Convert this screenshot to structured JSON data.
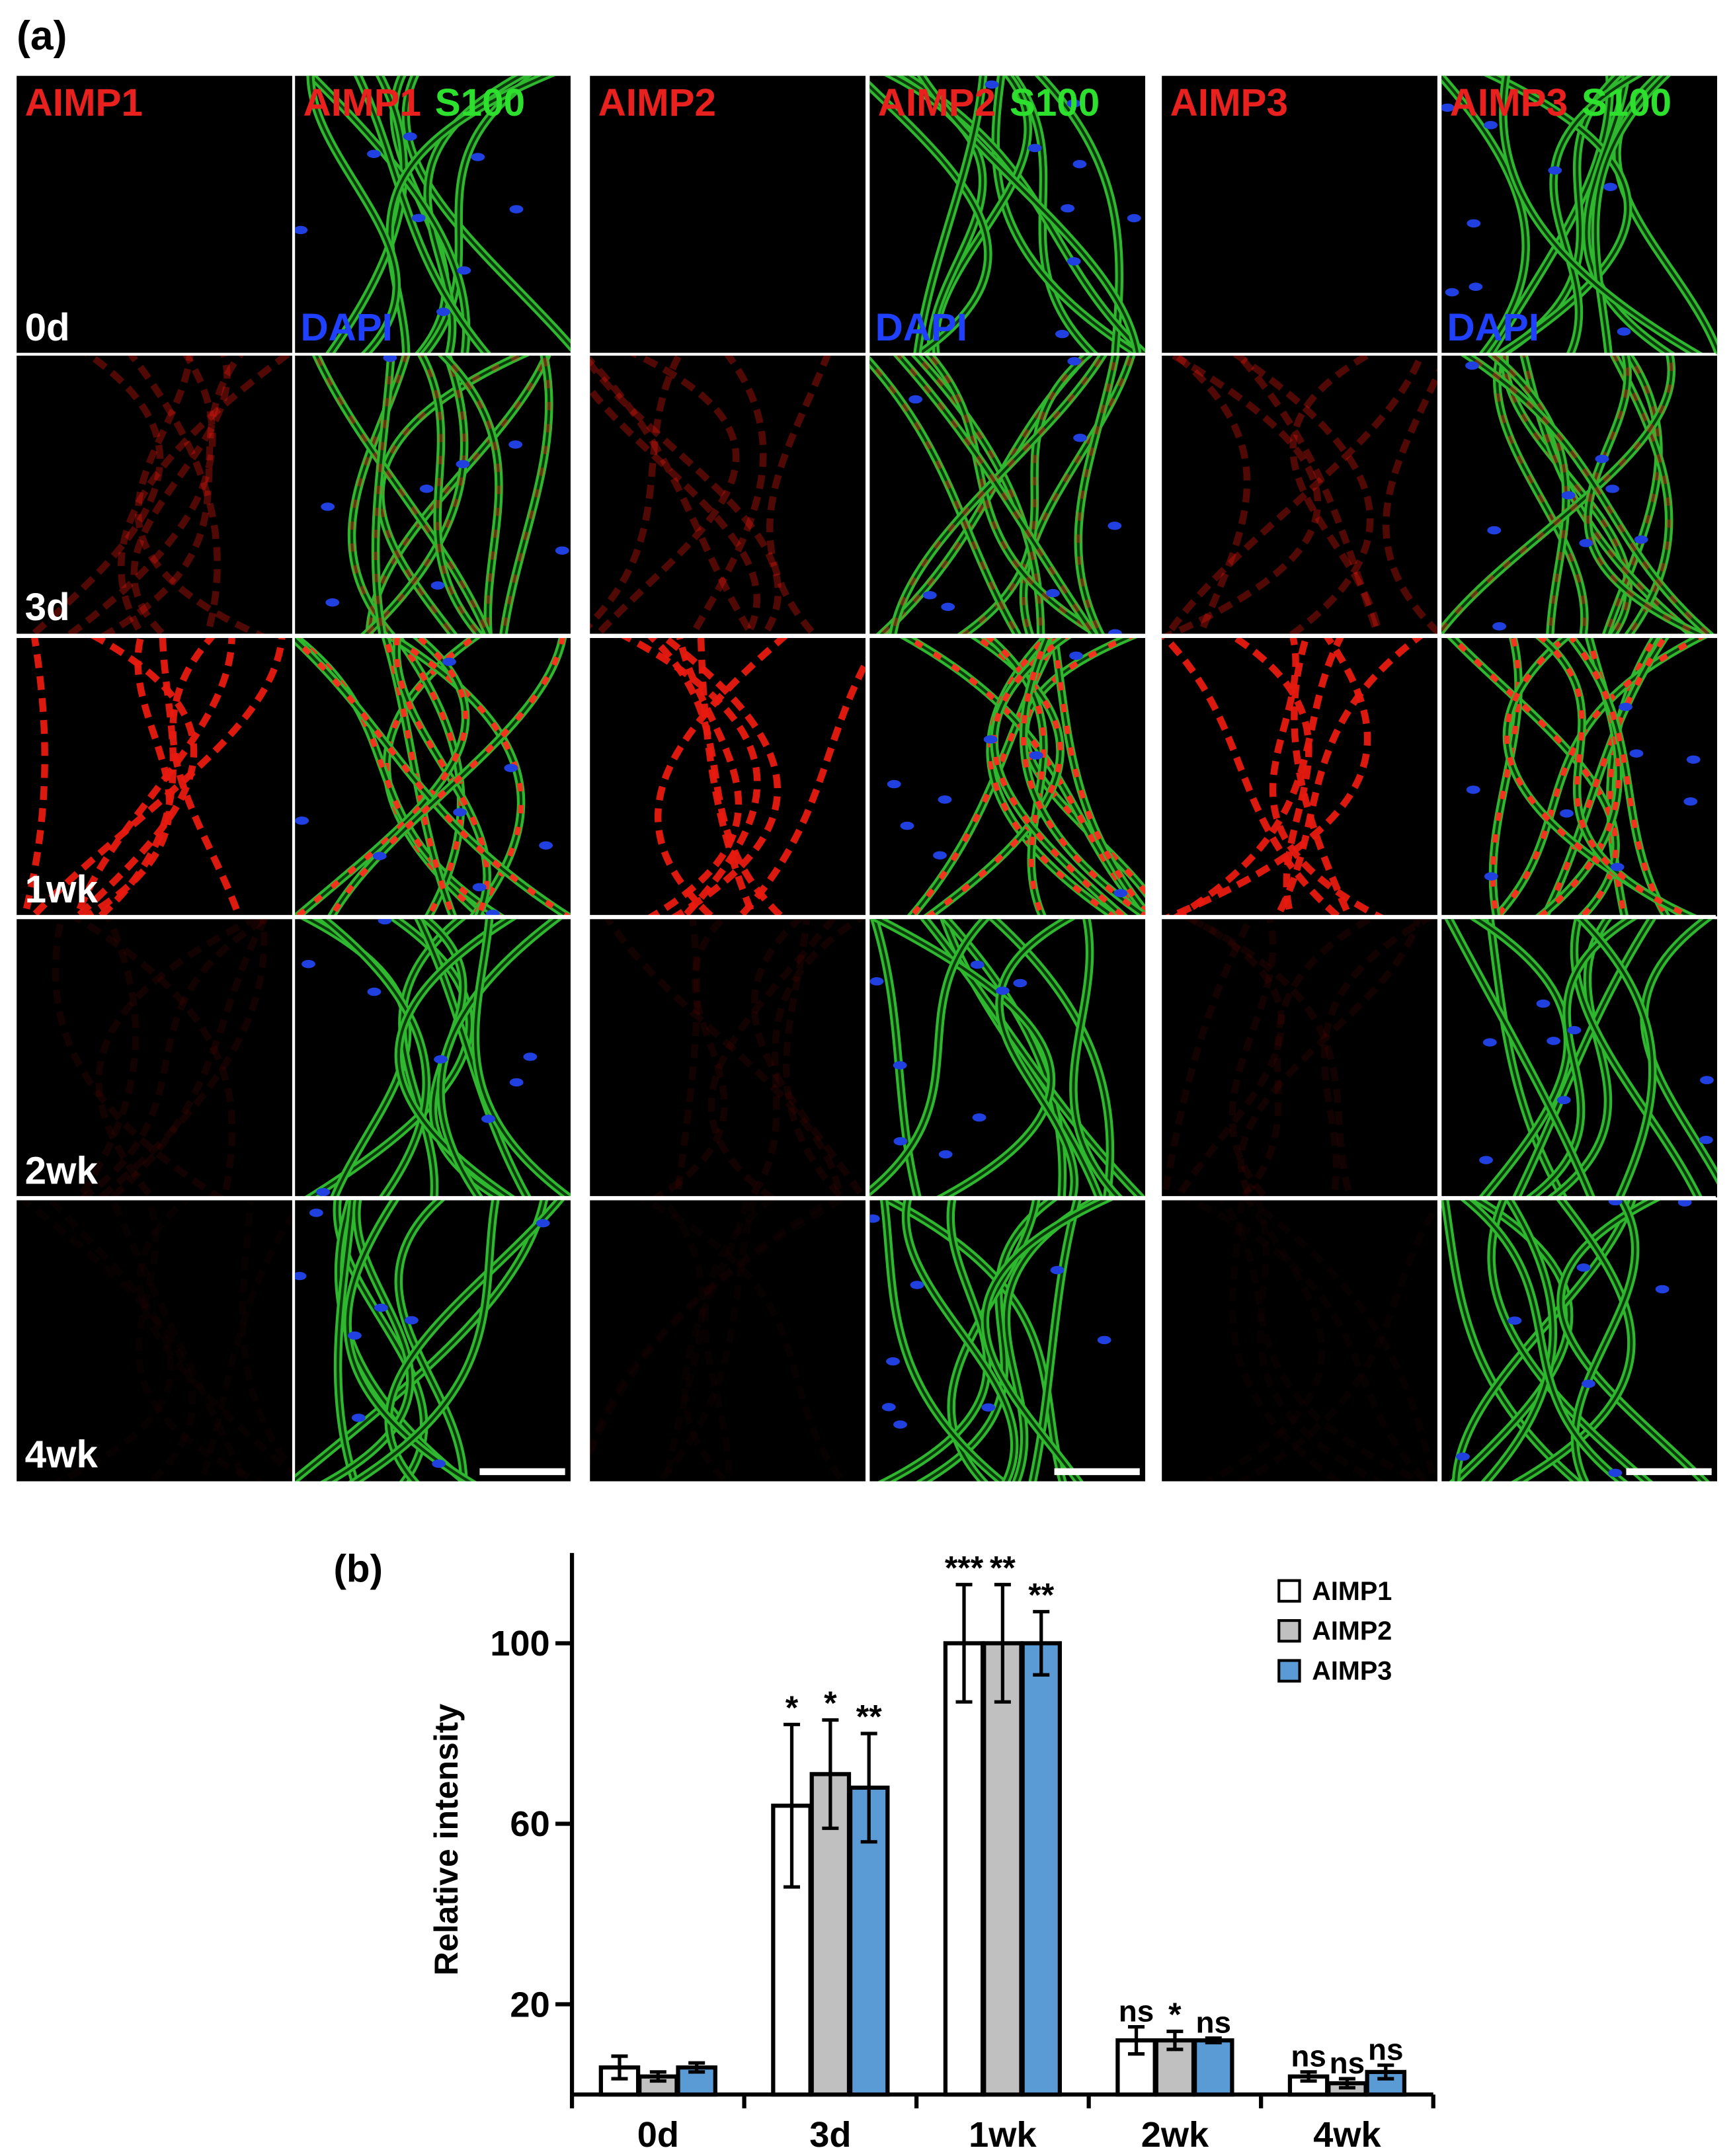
{
  "panel_a": {
    "label": "(a)",
    "groups": [
      {
        "marker": "AIMP1",
        "merge_labels": [
          "AIMP1",
          "S100"
        ],
        "dapi": "DAPI"
      },
      {
        "marker": "AIMP2",
        "merge_labels": [
          "AIMP2",
          "S100"
        ],
        "dapi": "DAPI"
      },
      {
        "marker": "AIMP3",
        "merge_labels": [
          "AIMP3",
          "S100"
        ],
        "dapi": "DAPI"
      }
    ],
    "rows": [
      "0d",
      "3d",
      "1wk",
      "2wk",
      "4wk"
    ]
  },
  "chart_data": {
    "type": "bar",
    "panel_label": "(b)",
    "y_label": "Relative intensity",
    "categories": [
      "0d",
      "3d",
      "1wk",
      "2wk",
      "4wk"
    ],
    "series": [
      {
        "name": "AIMP1",
        "color": "#ffffff",
        "values": [
          6,
          64,
          100,
          12,
          4
        ],
        "errors": [
          2.5,
          18,
          13,
          3,
          1
        ],
        "labels": [
          null,
          "*",
          "***",
          "ns",
          "ns"
        ]
      },
      {
        "name": "AIMP2",
        "color": "#c0c0c0",
        "values": [
          4,
          71,
          100,
          12,
          2.5
        ],
        "errors": [
          1,
          12,
          13,
          2,
          1
        ],
        "labels": [
          null,
          "*",
          "**",
          "*",
          "ns"
        ]
      },
      {
        "name": "AIMP3",
        "color": "#5b9bd5",
        "values": [
          6,
          68,
          100,
          12,
          5
        ],
        "errors": [
          1,
          12,
          7,
          0.5,
          1.5
        ],
        "labels": [
          null,
          "**",
          "**",
          "ns",
          "ns"
        ]
      }
    ],
    "ylim": [
      0,
      120
    ],
    "yticks": [
      20,
      60,
      100
    ],
    "legend": "top-right"
  }
}
